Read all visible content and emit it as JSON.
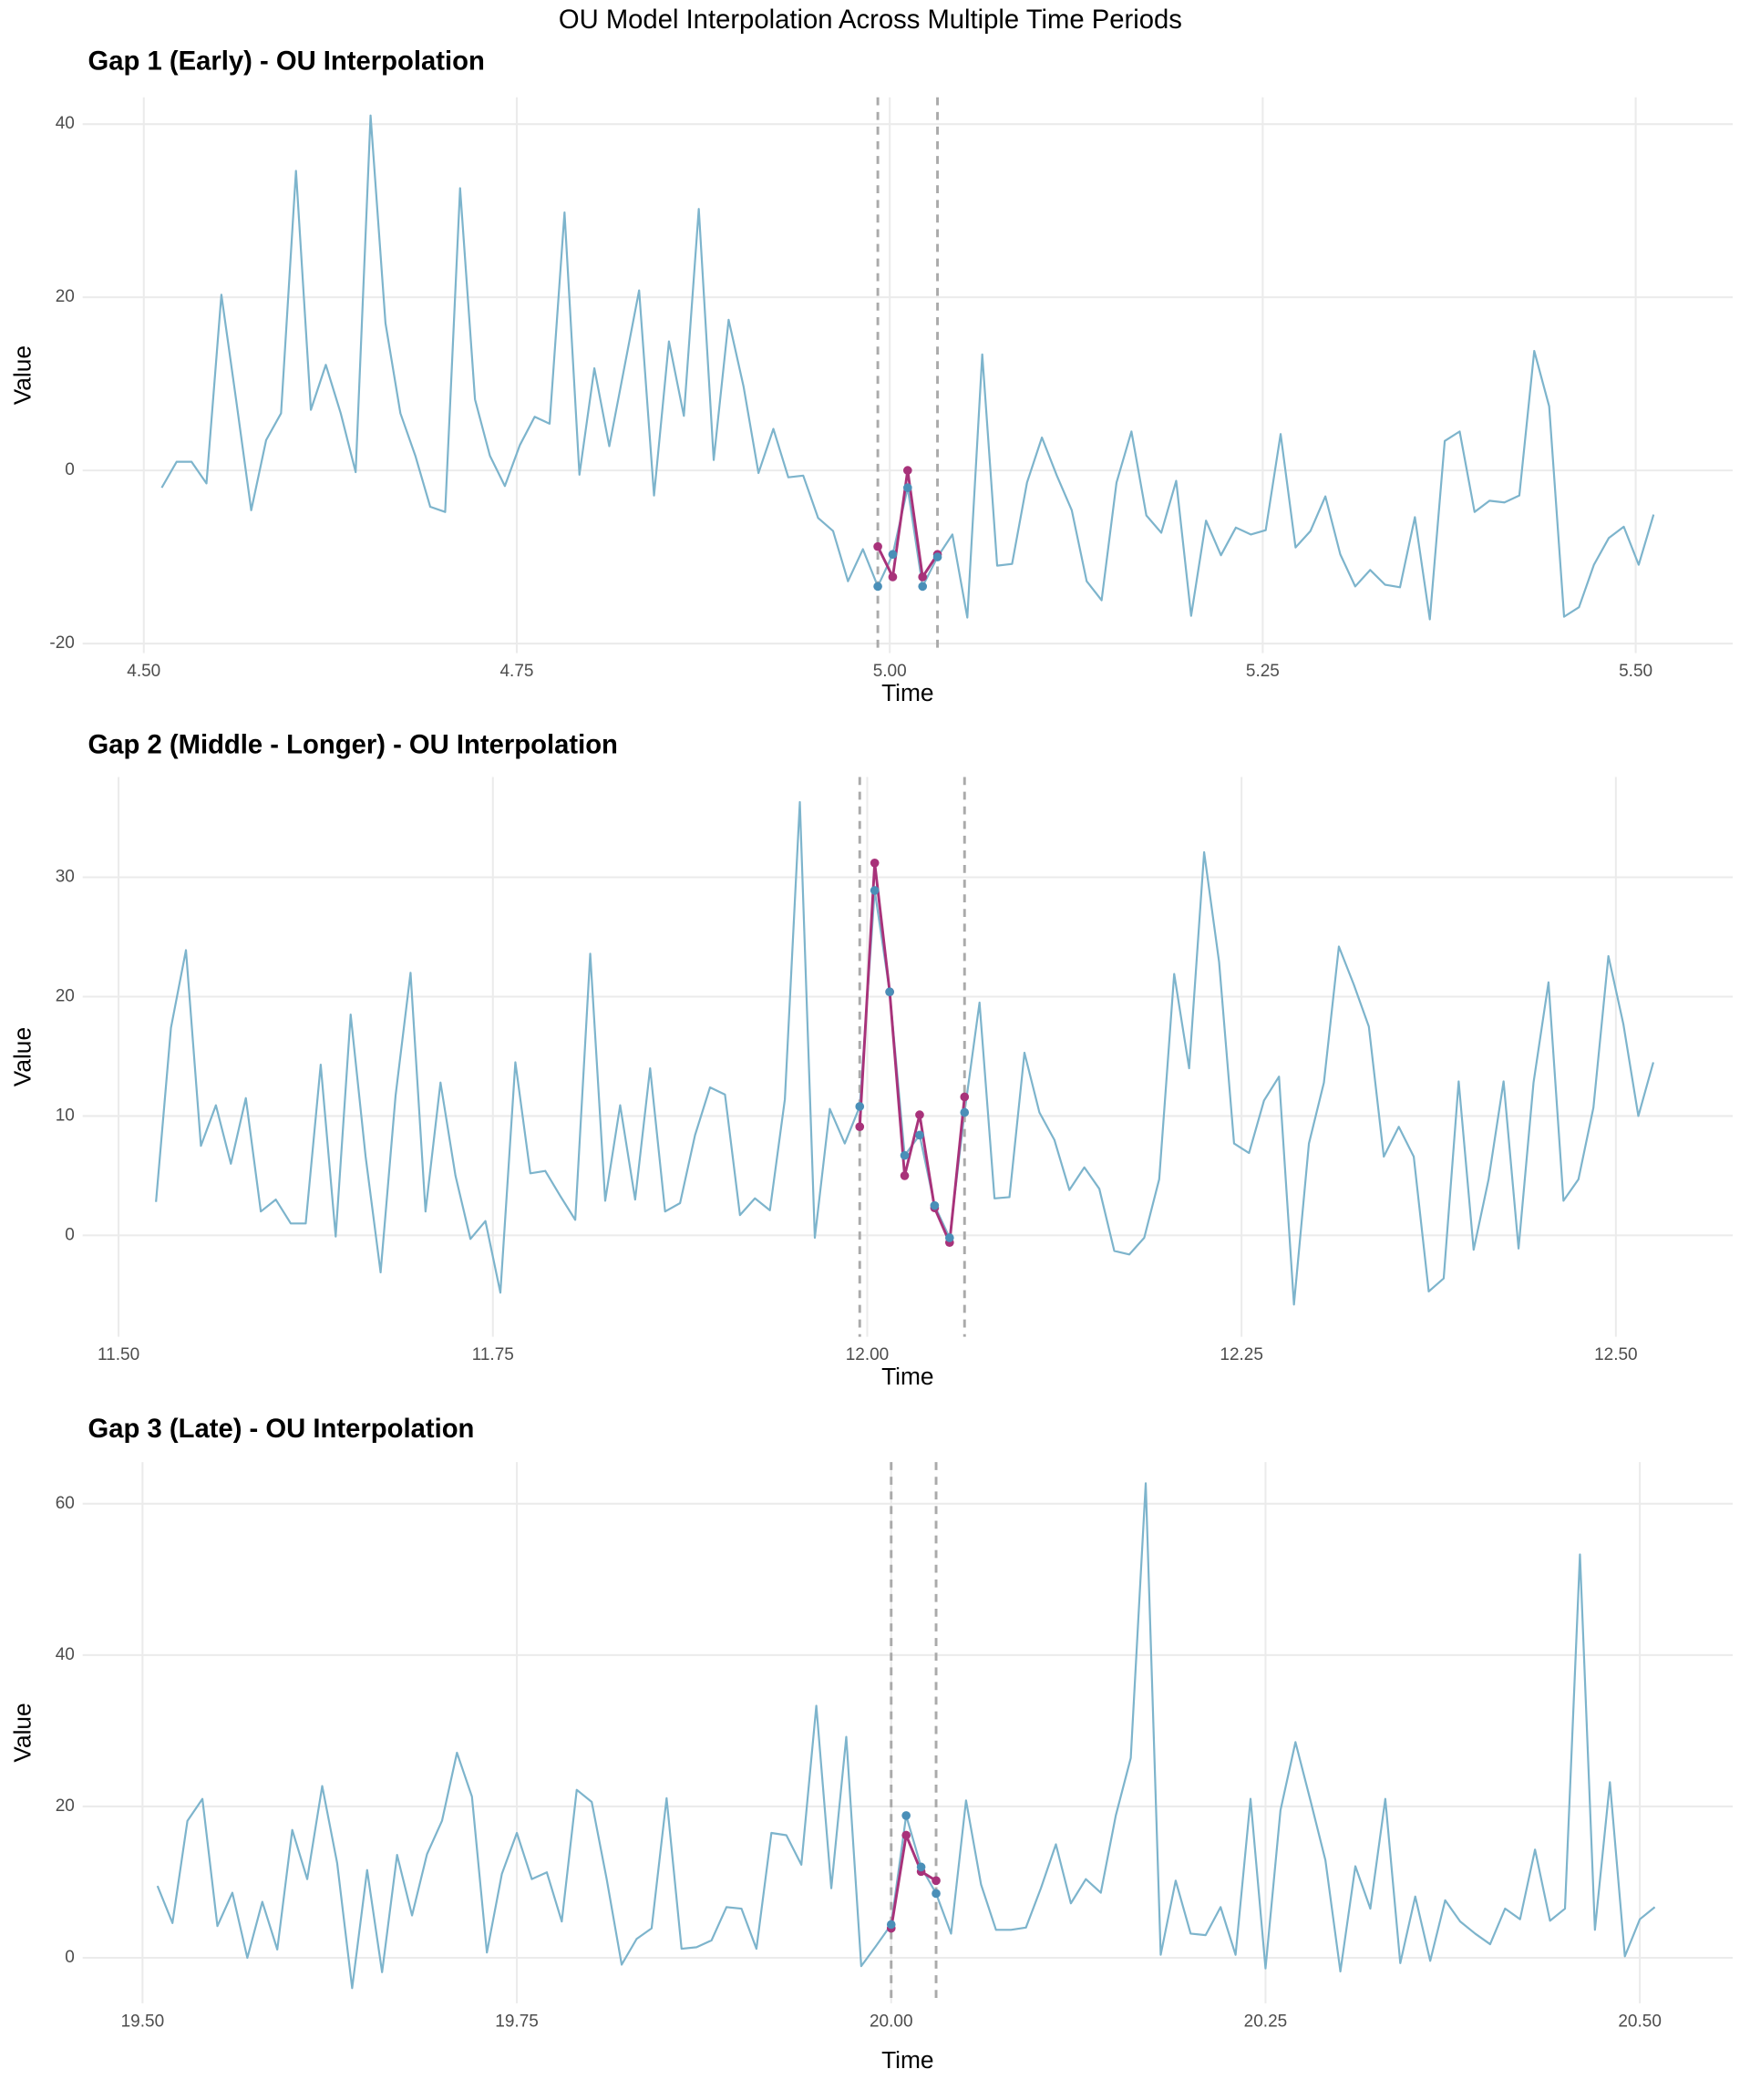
{
  "title": "OU Model Interpolation Across Multiple Time Periods",
  "chart_data": [
    {
      "type": "line",
      "title": "Gap 1 (Early) - OU Interpolation",
      "x_label": "Time",
      "y_label": "Value",
      "xlim": [
        4.459,
        5.565
      ],
      "ylim": [
        -21.1,
        43.1
      ],
      "xticks": [
        {
          "value": 4.5,
          "label": "4.50"
        },
        {
          "value": 4.75,
          "label": "4.75"
        },
        {
          "value": 5,
          "label": "5.00"
        },
        {
          "value": 5.25,
          "label": "5.25"
        },
        {
          "value": 5.5,
          "label": "5.50"
        }
      ],
      "yticks": [
        -20,
        0,
        20,
        40
      ],
      "grid": true,
      "vlines": {
        "x": [
          4.992,
          5.032
        ],
        "color": "#aaaaaa",
        "style": "dashed"
      },
      "series": [
        {
          "style": "line",
          "color": "#7db4cc",
          "x": [
            4.512,
            4.522,
            4.532,
            4.542,
            4.552,
            4.562,
            4.572,
            4.582,
            4.592,
            4.602,
            4.612,
            4.622,
            4.632,
            4.642,
            4.652,
            4.662,
            4.672,
            4.682,
            4.692,
            4.702,
            4.712,
            4.722,
            4.732,
            4.742,
            4.752,
            4.762,
            4.772,
            4.782,
            4.792,
            4.802,
            4.812,
            4.822,
            4.832,
            4.842,
            4.852,
            4.862,
            4.872,
            4.882,
            4.892,
            4.902,
            4.912,
            4.922,
            4.932,
            4.942,
            4.952,
            4.962,
            4.972,
            4.982,
            4.992,
            5.002,
            5.012,
            5.022,
            5.032,
            5.042,
            5.052,
            5.062,
            5.072,
            5.082,
            5.092,
            5.102,
            5.112,
            5.122,
            5.132,
            5.142,
            5.152,
            5.162,
            5.172,
            5.182,
            5.192,
            5.202,
            5.212,
            5.222,
            5.232,
            5.242,
            5.252,
            5.262,
            5.272,
            5.282,
            5.292,
            5.302,
            5.312,
            5.322,
            5.332,
            5.342,
            5.352,
            5.362,
            5.372,
            5.382,
            5.392,
            5.402,
            5.412,
            5.422,
            5.432,
            5.442,
            5.452,
            5.462,
            5.472,
            5.482,
            5.492,
            5.502,
            5.512
          ],
          "values": [
            -2,
            1,
            1,
            -1.5,
            20.3,
            8,
            -4.6,
            3.5,
            6.6,
            34.6,
            7,
            12.2,
            6.6,
            -0.2,
            41,
            17,
            6.6,
            1.7,
            -4.2,
            -4.8,
            32.6,
            8.2,
            1.7,
            -1.8,
            2.9,
            6.2,
            5.4,
            29.8,
            -0.5,
            11.8,
            2.8,
            11.8,
            20.8,
            -2.9,
            14.9,
            6.3,
            30.2,
            1.2,
            17.4,
            9.7,
            -0.3,
            4.8,
            -0.8,
            -0.6,
            -5.5,
            -7,
            -12.8,
            -9.1,
            -13.4,
            -9.7,
            -2,
            -13.4,
            -10,
            -7.4,
            -17,
            13.4,
            -11,
            -10.8,
            -1.4,
            3.8,
            -0.6,
            -4.6,
            -12.8,
            -15,
            -1.4,
            4.5,
            -5.2,
            -7.2,
            -1.2,
            -16.8,
            -5.8,
            -9.8,
            -6.6,
            -7.4,
            -6.9,
            4.2,
            -8.9,
            -7,
            -3,
            -9.7,
            -13.4,
            -11.5,
            -13.2,
            -13.5,
            -5.4,
            -17.2,
            3.4,
            4.5,
            -4.8,
            -3.5,
            -3.7,
            -2.9,
            13.8,
            7.4,
            -16.9,
            -15.8,
            -10.9,
            -7.8,
            -6.5,
            -10.9,
            -5.1
          ]
        },
        {
          "style": "line+points",
          "color": "#a8327a",
          "x": [
            4.992,
            5.002,
            5.012,
            5.022,
            5.032
          ],
          "values": [
            -8.8,
            -12.3,
            0,
            -12.3,
            -9.7
          ]
        },
        {
          "style": "points",
          "color": "#4a8fb8",
          "x": [
            4.992,
            5.002,
            5.012,
            5.022,
            5.032
          ],
          "values": [
            -13.4,
            -9.7,
            -2,
            -13.4,
            -10
          ]
        }
      ]
    },
    {
      "type": "line",
      "title": "Gap 2 (Middle - Longer) - OU Interpolation",
      "x_label": "Time",
      "y_label": "Value",
      "xlim": [
        11.476,
        12.578
      ],
      "ylim": [
        -8.5,
        38.4
      ],
      "xticks": [
        {
          "value": 11.5,
          "label": "11.50"
        },
        {
          "value": 11.75,
          "label": "11.75"
        },
        {
          "value": 12,
          "label": "12.00"
        },
        {
          "value": 12.25,
          "label": "12.25"
        },
        {
          "value": 12.5,
          "label": "12.50"
        }
      ],
      "yticks": [
        0,
        10,
        20,
        30
      ],
      "grid": true,
      "vlines": {
        "x": [
          11.995,
          12.065
        ],
        "color": "#aaaaaa",
        "style": "dashed"
      },
      "series": [
        {
          "style": "line",
          "color": "#7db4cc",
          "x": [
            11.525,
            11.535,
            11.545,
            11.555,
            11.565,
            11.575,
            11.585,
            11.595,
            11.605,
            11.615,
            11.625,
            11.635,
            11.645,
            11.655,
            11.665,
            11.675,
            11.685,
            11.695,
            11.705,
            11.715,
            11.725,
            11.735,
            11.745,
            11.755,
            11.765,
            11.775,
            11.785,
            11.795,
            11.805,
            11.815,
            11.825,
            11.835,
            11.845,
            11.855,
            11.865,
            11.875,
            11.885,
            11.895,
            11.905,
            11.915,
            11.925,
            11.935,
            11.945,
            11.955,
            11.965,
            11.975,
            11.985,
            11.995,
            12.005,
            12.015,
            12.025,
            12.035,
            12.045,
            12.055,
            12.065,
            12.075,
            12.085,
            12.095,
            12.105,
            12.115,
            12.125,
            12.135,
            12.145,
            12.155,
            12.165,
            12.175,
            12.185,
            12.195,
            12.205,
            12.215,
            12.225,
            12.235,
            12.245,
            12.255,
            12.265,
            12.275,
            12.285,
            12.295,
            12.305,
            12.315,
            12.325,
            12.335,
            12.345,
            12.355,
            12.365,
            12.375,
            12.385,
            12.395,
            12.405,
            12.415,
            12.425,
            12.435,
            12.445,
            12.455,
            12.465,
            12.475,
            12.485,
            12.495,
            12.505,
            12.515,
            12.525
          ],
          "values": [
            2.8,
            17.4,
            23.9,
            7.5,
            10.9,
            6,
            11.5,
            2,
            3,
            1,
            1,
            14.3,
            -0.1,
            18.5,
            6.6,
            -3.1,
            11.7,
            22,
            2,
            12.8,
            5,
            -0.3,
            1.2,
            -4.8,
            14.5,
            5.2,
            5.4,
            3.3,
            1.3,
            23.6,
            2.9,
            10.9,
            3,
            14,
            2,
            2.7,
            8.4,
            12.4,
            11.8,
            1.7,
            3.1,
            2.1,
            11.4,
            36.3,
            -0.2,
            10.6,
            7.7,
            10.8,
            28.9,
            20.4,
            6.7,
            8.4,
            2.5,
            -0.2,
            10.3,
            19.5,
            3.1,
            3.2,
            15.3,
            10.3,
            8,
            3.8,
            5.7,
            3.9,
            -1.3,
            -1.6,
            -0.2,
            4.7,
            21.9,
            14,
            32.1,
            22.9,
            7.7,
            6.9,
            11.3,
            13.3,
            -5.8,
            7.7,
            12.8,
            24.2,
            21,
            17.5,
            6.6,
            9.1,
            6.6,
            -4.7,
            -3.6,
            12.9,
            -1.2,
            4.7,
            12.9,
            -1.1,
            12.8,
            21.2,
            2.9,
            4.7,
            10.7,
            23.4,
            17.7,
            10,
            14.5
          ]
        },
        {
          "style": "line+points",
          "color": "#a8327a",
          "x": [
            11.995,
            12.005,
            12.015,
            12.025,
            12.035,
            12.045,
            12.055,
            12.065
          ],
          "values": [
            9.1,
            31.2,
            20.4,
            5,
            10.1,
            2.3,
            -0.6,
            11.6
          ]
        },
        {
          "style": "points",
          "color": "#4a8fb8",
          "x": [
            11.995,
            12.005,
            12.015,
            12.025,
            12.035,
            12.045,
            12.055,
            12.065
          ],
          "values": [
            10.8,
            28.9,
            20.4,
            6.7,
            8.4,
            2.5,
            -0.2,
            10.3
          ]
        }
      ]
    },
    {
      "type": "line",
      "title": "Gap 3 (Late) - OU Interpolation",
      "x_label": "Time",
      "y_label": "Value",
      "xlim": [
        19.46,
        20.562
      ],
      "ylim": [
        -6,
        65.5
      ],
      "xticks": [
        {
          "value": 19.5,
          "label": "19.50"
        },
        {
          "value": 19.75,
          "label": "19.75"
        },
        {
          "value": 20,
          "label": "20.00"
        },
        {
          "value": 20.25,
          "label": "20.25"
        },
        {
          "value": 20.5,
          "label": "20.50"
        }
      ],
      "yticks": [
        0,
        20,
        40,
        60
      ],
      "grid": true,
      "vlines": {
        "x": [
          20,
          20.03
        ],
        "color": "#aaaaaa",
        "style": "dashed"
      },
      "series": [
        {
          "style": "line",
          "color": "#7db4cc",
          "x": [
            19.51,
            19.52,
            19.53,
            19.54,
            19.55,
            19.56,
            19.57,
            19.58,
            19.59,
            19.6,
            19.61,
            19.62,
            19.63,
            19.64,
            19.65,
            19.66,
            19.67,
            19.68,
            19.69,
            19.7,
            19.71,
            19.72,
            19.73,
            19.74,
            19.75,
            19.76,
            19.77,
            19.78,
            19.79,
            19.8,
            19.81,
            19.82,
            19.83,
            19.84,
            19.85,
            19.86,
            19.87,
            19.88,
            19.89,
            19.9,
            19.91,
            19.92,
            19.93,
            19.94,
            19.95,
            19.96,
            19.97,
            19.98,
            19.99,
            20,
            20.01,
            20.02,
            20.03,
            20.04,
            20.05,
            20.06,
            20.07,
            20.08,
            20.09,
            20.1,
            20.11,
            20.12,
            20.13,
            20.14,
            20.15,
            20.16,
            20.17,
            20.18,
            20.19,
            20.2,
            20.21,
            20.22,
            20.23,
            20.24,
            20.25,
            20.26,
            20.27,
            20.28,
            20.29,
            20.3,
            20.31,
            20.32,
            20.33,
            20.34,
            20.35,
            20.36,
            20.37,
            20.38,
            20.39,
            20.4,
            20.41,
            20.42,
            20.43,
            20.44,
            20.45,
            20.46,
            20.47,
            20.48,
            20.49,
            20.5,
            20.51
          ],
          "values": [
            9.5,
            4.6,
            18.1,
            21,
            4.2,
            8.6,
            0,
            7.4,
            1.1,
            16.9,
            10.4,
            22.7,
            12.5,
            -4,
            11.6,
            -1.9,
            13.6,
            5.6,
            13.7,
            18.1,
            27.1,
            21.3,
            0.7,
            11.1,
            16.5,
            10.4,
            11.3,
            4.8,
            22.2,
            20.6,
            10.4,
            -0.9,
            2.5,
            3.9,
            21.1,
            1.2,
            1.4,
            2.3,
            6.7,
            6.5,
            1.2,
            16.5,
            16.2,
            12.3,
            33.3,
            9.2,
            29.2,
            -1.1,
            1.6,
            4.4,
            18.8,
            12,
            8.5,
            3.2,
            20.8,
            9.7,
            3.7,
            3.7,
            4,
            9.2,
            15,
            7.2,
            10.4,
            8.6,
            18.8,
            26.4,
            62.7,
            0.4,
            10.2,
            3.2,
            3,
            6.7,
            0.4,
            21,
            -1.4,
            19.5,
            28.5,
            20.8,
            12.9,
            -1.8,
            12.1,
            6.5,
            21,
            -0.7,
            8.1,
            -0.4,
            7.6,
            4.8,
            3.2,
            1.8,
            6.5,
            5.1,
            14.3,
            4.9,
            6.5,
            53.3,
            3.7,
            23.2,
            0.2,
            5.1,
            6.7
          ]
        },
        {
          "style": "line+points",
          "color": "#a8327a",
          "x": [
            20,
            20.01,
            20.02,
            20.03
          ],
          "values": [
            3.9,
            16.2,
            11.4,
            10.2
          ]
        },
        {
          "style": "points",
          "color": "#4a8fb8",
          "x": [
            20,
            20.01,
            20.02,
            20.03
          ],
          "values": [
            4.4,
            18.8,
            12,
            8.5
          ]
        }
      ]
    }
  ]
}
